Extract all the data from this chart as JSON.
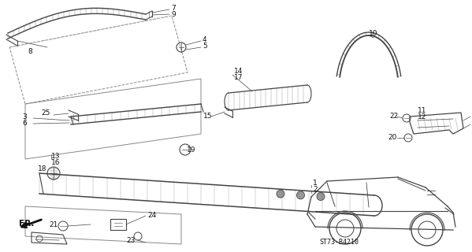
{
  "bg_color": "#ffffff",
  "fig_width": 5.99,
  "fig_height": 3.2,
  "dpi": 100,
  "line_color": "#444444",
  "text_color": "#111111",
  "diagram_code": "ST73-B4210"
}
